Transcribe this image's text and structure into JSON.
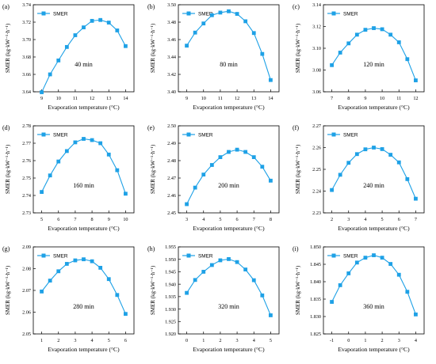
{
  "page": {
    "ylabel": "SMER (kg·kW⁻¹·h⁻¹)",
    "xlabel": "Evaporation temperature (°C)",
    "legend_label": "SMER"
  },
  "colors": {
    "series": "#1ea1e6",
    "text": "#000000",
    "axis": "#000000"
  },
  "chart_data": [
    {
      "type": "line",
      "panel_label": "(a)",
      "time_label": "40 min",
      "xlabel": "Evaporation temperature (°C)",
      "ylabel": "SMER (kg·kW⁻¹·h⁻¹)",
      "xlim": [
        8.5,
        14.5
      ],
      "ylim": [
        3.64,
        3.74
      ],
      "xticks": [
        9,
        10,
        11,
        12,
        13,
        14
      ],
      "xtick_labels": [
        "9",
        "10",
        "11",
        "12",
        "13",
        "14"
      ],
      "yticks": [
        3.64,
        3.66,
        3.68,
        3.7,
        3.72,
        3.74
      ],
      "ytick_labels": [
        "3.64",
        "3.66",
        "3.68",
        "3.70",
        "3.72",
        "3.74"
      ],
      "legend": "top-left",
      "series": [
        {
          "name": "SMER",
          "x": [
            9,
            9.5,
            10,
            10.5,
            11,
            11.5,
            12,
            12.5,
            13,
            13.5,
            14
          ],
          "y": [
            3.6395,
            3.66,
            3.676,
            3.6915,
            3.705,
            3.714,
            3.7215,
            3.7225,
            3.7195,
            3.7105,
            3.6925
          ]
        }
      ]
    },
    {
      "type": "line",
      "panel_label": "(b)",
      "time_label": "80 min",
      "xlabel": "Evaporation temperature (°C)",
      "ylabel": "SMER (kg·kW⁻¹·h⁻¹)",
      "xlim": [
        8.5,
        14.5
      ],
      "ylim": [
        3.4,
        3.5
      ],
      "xticks": [
        9,
        10,
        11,
        12,
        13,
        14
      ],
      "xtick_labels": [
        "9",
        "10",
        "11",
        "12",
        "13",
        "14"
      ],
      "yticks": [
        3.4,
        3.42,
        3.44,
        3.46,
        3.48,
        3.5
      ],
      "ytick_labels": [
        "3.40",
        "3.42",
        "3.44",
        "3.46",
        "3.48",
        "3.50"
      ],
      "legend": "top-left",
      "series": [
        {
          "name": "SMER",
          "x": [
            9,
            9.5,
            10,
            10.5,
            11,
            11.5,
            12,
            12.5,
            13,
            13.5,
            14
          ],
          "y": [
            3.453,
            3.468,
            3.4785,
            3.488,
            3.491,
            3.4925,
            3.4895,
            3.481,
            3.4675,
            3.4435,
            3.4135
          ]
        }
      ]
    },
    {
      "type": "line",
      "panel_label": "(c)",
      "time_label": "120 min",
      "xlabel": "Evaporation temperature (°C)",
      "ylabel": "SMER (kg·kW⁻¹·h⁻¹)",
      "xlim": [
        6.5,
        12.5
      ],
      "ylim": [
        3.06,
        3.14
      ],
      "xticks": [
        7,
        8,
        9,
        10,
        11,
        12
      ],
      "xtick_labels": [
        "7",
        "8",
        "9",
        "10",
        "11",
        "12"
      ],
      "yticks": [
        3.06,
        3.08,
        3.1,
        3.12,
        3.14
      ],
      "ytick_labels": [
        "3.06",
        "3.08",
        "3.10",
        "3.12",
        "3.14"
      ],
      "legend": "top-left",
      "series": [
        {
          "name": "SMER",
          "x": [
            7,
            7.5,
            8,
            8.5,
            9,
            9.5,
            10,
            10.5,
            11,
            11.5,
            12
          ],
          "y": [
            3.0845,
            3.096,
            3.1045,
            3.1125,
            3.117,
            3.1185,
            3.1175,
            3.1125,
            3.1055,
            3.09,
            3.0705
          ]
        }
      ]
    },
    {
      "type": "line",
      "panel_label": "(d)",
      "time_label": "160 min",
      "xlabel": "Evaporation temperature (°C)",
      "ylabel": "SMER (kg·kW⁻¹·h⁻¹)",
      "xlim": [
        4.5,
        10.5
      ],
      "ylim": [
        2.73,
        2.78
      ],
      "xticks": [
        5,
        6,
        7,
        8,
        9,
        10
      ],
      "xtick_labels": [
        "5",
        "6",
        "7",
        "8",
        "9",
        "10"
      ],
      "yticks": [
        2.73,
        2.74,
        2.75,
        2.76,
        2.77,
        2.78
      ],
      "ytick_labels": [
        "2.73",
        "2.74",
        "2.75",
        "2.76",
        "2.77",
        "2.78"
      ],
      "legend": "top-left",
      "series": [
        {
          "name": "SMER",
          "x": [
            5,
            5.5,
            6,
            6.5,
            7,
            7.5,
            8,
            8.5,
            9,
            9.5,
            10
          ],
          "y": [
            2.742,
            2.7515,
            2.7595,
            2.7655,
            2.7705,
            2.7725,
            2.7718,
            2.77,
            2.7635,
            2.7545,
            2.741
          ]
        }
      ]
    },
    {
      "type": "line",
      "panel_label": "(e)",
      "time_label": "200 min",
      "xlabel": "Evaporation temperature (°C)",
      "ylabel": "SMER (kg·kW⁻¹·h⁻¹)",
      "xlim": [
        2.5,
        8.5
      ],
      "ylim": [
        2.45,
        2.5
      ],
      "xticks": [
        3,
        4,
        5,
        6,
        7,
        8
      ],
      "xtick_labels": [
        "3",
        "4",
        "5",
        "6",
        "7",
        "8"
      ],
      "yticks": [
        2.45,
        2.46,
        2.47,
        2.48,
        2.49,
        2.5
      ],
      "ytick_labels": [
        "2.45",
        "2.46",
        "2.47",
        "2.48",
        "2.49",
        "2.50"
      ],
      "legend": "top-left",
      "series": [
        {
          "name": "SMER",
          "x": [
            3,
            3.5,
            4,
            4.5,
            5,
            5.5,
            6,
            6.5,
            7,
            7.5,
            8
          ],
          "y": [
            2.455,
            2.4645,
            2.472,
            2.4775,
            2.482,
            2.485,
            2.4863,
            2.485,
            2.482,
            2.4765,
            2.4685
          ]
        }
      ]
    },
    {
      "type": "line",
      "panel_label": "(f)",
      "time_label": "240 min",
      "xlabel": "Evaporation temperature (°C)",
      "ylabel": "SMER (kg·kW⁻¹·h⁻¹)",
      "xlim": [
        1.5,
        7.5
      ],
      "ylim": [
        2.23,
        2.27
      ],
      "xticks": [
        2,
        3,
        4,
        5,
        6,
        7
      ],
      "xtick_labels": [
        "2",
        "3",
        "4",
        "5",
        "6",
        "7"
      ],
      "yticks": [
        2.23,
        2.24,
        2.25,
        2.26,
        2.27
      ],
      "ytick_labels": [
        "2.23",
        "2.24",
        "2.25",
        "2.26",
        "2.27"
      ],
      "legend": "top-left",
      "series": [
        {
          "name": "SMER",
          "x": [
            2,
            2.5,
            3,
            3.5,
            4,
            4.5,
            5,
            5.5,
            6,
            6.5,
            7
          ],
          "y": [
            2.2405,
            2.2475,
            2.253,
            2.257,
            2.2592,
            2.26,
            2.2593,
            2.2567,
            2.2532,
            2.2455,
            2.2365
          ]
        }
      ]
    },
    {
      "type": "line",
      "panel_label": "(g)",
      "time_label": "280 min",
      "xlabel": "Evaporation temperature (°C)",
      "ylabel": "SMER (kg·kW⁻¹·h⁻¹)",
      "xlim": [
        0.5,
        6.5
      ],
      "ylim": [
        2.05,
        2.09
      ],
      "xticks": [
        1,
        2,
        3,
        4,
        5,
        6
      ],
      "xtick_labels": [
        "1",
        "2",
        "3",
        "4",
        "5",
        "6"
      ],
      "yticks": [
        2.05,
        2.06,
        2.07,
        2.08,
        2.09
      ],
      "ytick_labels": [
        "2.05",
        "2.06",
        "2.07",
        "2.08",
        "2.09"
      ],
      "legend": "top-left",
      "series": [
        {
          "name": "SMER",
          "x": [
            1,
            1.5,
            2,
            2.5,
            3,
            3.5,
            4,
            4.5,
            5,
            5.5,
            6
          ],
          "y": [
            2.0695,
            2.0745,
            2.0788,
            2.0822,
            2.0838,
            2.0843,
            2.0834,
            2.0804,
            2.0752,
            2.0679,
            2.0592
          ]
        }
      ]
    },
    {
      "type": "line",
      "panel_label": "(h)",
      "time_label": "320 min",
      "xlabel": "Evaporation temperature (°C)",
      "ylabel": "SMER (kg·kW⁻¹·h⁻¹)",
      "xlim": [
        -0.5,
        5.5
      ],
      "ylim": [
        1.92,
        1.955
      ],
      "xticks": [
        0,
        1,
        2,
        3,
        4,
        5
      ],
      "xtick_labels": [
        "0",
        "1",
        "2",
        "3",
        "4",
        "5"
      ],
      "yticks": [
        1.92,
        1.925,
        1.93,
        1.935,
        1.94,
        1.945,
        1.95,
        1.955
      ],
      "ytick_labels": [
        "1.920",
        "1.925",
        "1.930",
        "1.935",
        "1.940",
        "1.945",
        "1.950",
        "1.955"
      ],
      "legend": "top-left",
      "series": [
        {
          "name": "SMER",
          "x": [
            0,
            0.5,
            1,
            1.5,
            2,
            2.5,
            3,
            3.5,
            4,
            4.5,
            5
          ],
          "y": [
            1.9365,
            1.9417,
            1.945,
            1.9477,
            1.9496,
            1.9501,
            1.9489,
            1.9459,
            1.9416,
            1.9355,
            1.9275
          ]
        }
      ]
    },
    {
      "type": "line",
      "panel_label": "(i)",
      "time_label": "360 min",
      "xlabel": "Evaporation temperature (°C)",
      "ylabel": "SMER (kg·kW⁻¹·h⁻¹)",
      "xlim": [
        -1.5,
        4.5
      ],
      "ylim": [
        1.825,
        1.85
      ],
      "xticks": [
        -1,
        0,
        1,
        2,
        3,
        4
      ],
      "xtick_labels": [
        "-1",
        "0",
        "1",
        "2",
        "3",
        "4"
      ],
      "yticks": [
        1.825,
        1.83,
        1.835,
        1.84,
        1.845,
        1.85
      ],
      "ytick_labels": [
        "1.825",
        "1.830",
        "1.835",
        "1.840",
        "1.845",
        "1.850"
      ],
      "legend": "top-left",
      "series": [
        {
          "name": "SMER",
          "x": [
            -1,
            -0.5,
            0,
            0.5,
            1,
            1.5,
            2,
            2.5,
            3,
            3.5,
            4
          ],
          "y": [
            1.8342,
            1.839,
            1.8424,
            1.8455,
            1.8469,
            1.8476,
            1.8469,
            1.8451,
            1.842,
            1.8371,
            1.8306
          ]
        }
      ]
    }
  ]
}
